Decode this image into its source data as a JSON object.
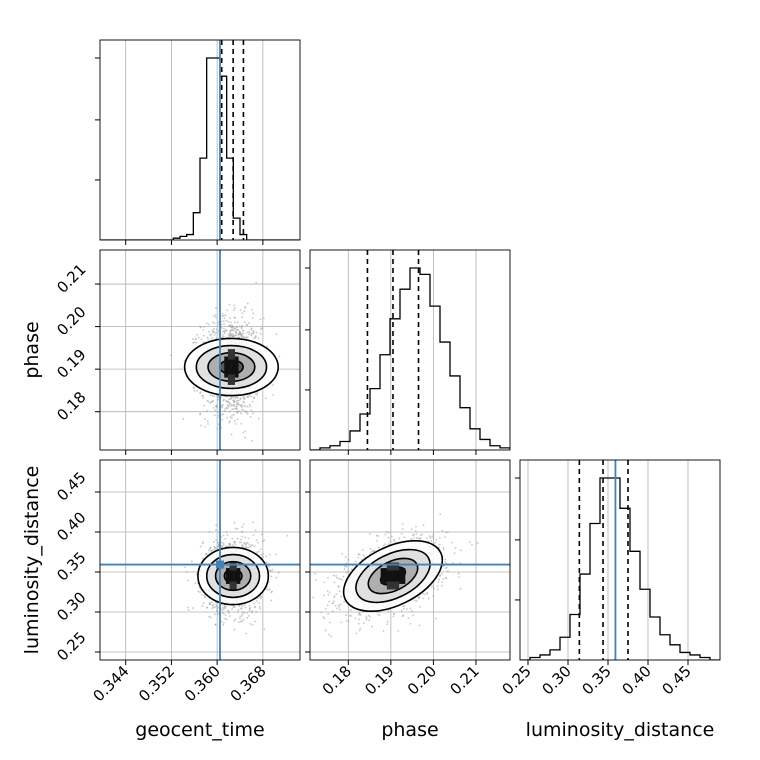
{
  "chart_data": {
    "type": "corner",
    "parameters": [
      "geocent_time",
      "phase",
      "luminosity_distance"
    ],
    "injection": {
      "geocent_time": 0.3605,
      "phase": null,
      "luminosity_distance": 0.3593
    },
    "quantiles": {
      "geocent_time": [
        0.3608,
        0.3628,
        0.3646
      ],
      "phase": [
        0.1845,
        0.1905,
        0.1965
      ],
      "luminosity_distance": [
        0.3142,
        0.3438,
        0.375
      ]
    },
    "axes": {
      "geocent_time": {
        "range": [
          0.3395,
          0.3745
        ],
        "ticks": [
          0.344,
          0.352,
          0.36,
          0.368
        ],
        "tick_labels": [
          "0.344",
          "0.352",
          "0.360",
          "0.368"
        ]
      },
      "phase": {
        "range": [
          0.171,
          0.218
        ],
        "ticks": [
          0.18,
          0.19,
          0.2,
          0.21
        ],
        "tick_labels": [
          "0.18",
          "0.19",
          "0.20",
          "0.21"
        ]
      },
      "luminosity_distance": {
        "range": [
          0.24,
          0.49
        ],
        "ticks": [
          0.25,
          0.3,
          0.35,
          0.4,
          0.45
        ],
        "tick_labels": [
          "0.25",
          "0.30",
          "0.35",
          "0.40",
          "0.45"
        ]
      }
    },
    "histograms": {
      "geocent_time": {
        "edges_range": [
          0.3395,
          0.3745
        ],
        "counts": [
          0,
          0,
          0,
          0,
          0,
          0,
          0,
          0,
          0,
          0,
          0,
          1,
          2,
          3,
          15,
          45,
          100,
          100,
          90,
          45,
          12,
          3,
          0,
          0,
          0,
          0,
          0,
          0,
          0,
          0
        ]
      },
      "phase": {
        "edges_range": [
          0.171,
          0.218
        ],
        "counts": [
          0,
          1,
          2,
          4,
          9,
          17,
          29,
          45,
          62,
          76,
          86,
          83,
          68,
          51,
          35,
          20,
          10,
          5,
          2,
          1
        ]
      },
      "luminosity_distance": {
        "edges_range": [
          0.24,
          0.49
        ],
        "counts": [
          0,
          1,
          2,
          4,
          9,
          18,
          34,
          54,
          72,
          72,
          60,
          43,
          28,
          17,
          10,
          6,
          3,
          2,
          1,
          0
        ]
      }
    },
    "pairs": [
      {
        "x": "geocent_time",
        "y": "phase",
        "center": [
          0.3625,
          0.1905
        ],
        "sd": [
          0.0025,
          0.0055
        ],
        "rho": 0.0
      },
      {
        "x": "geocent_time",
        "y": "luminosity_distance",
        "center": [
          0.3628,
          0.345
        ],
        "sd": [
          0.0025,
          0.022
        ],
        "rho": 0.0
      },
      {
        "x": "phase",
        "y": "luminosity_distance",
        "center": [
          0.1905,
          0.345
        ],
        "sd": [
          0.0058,
          0.022
        ],
        "rho": 0.45
      }
    ],
    "contour_levels_sigma": [
      0.5,
      1.0,
      1.5,
      2.0
    ],
    "grid": true,
    "colors": {
      "injection": "#4682b4",
      "hist": "#000000",
      "contour": "#000000",
      "scatter": "#999999",
      "grid": "#b0b0b0"
    }
  },
  "labels": {
    "geocent_time": "geocent_time",
    "phase": "phase",
    "luminosity_distance": "luminosity_distance"
  }
}
